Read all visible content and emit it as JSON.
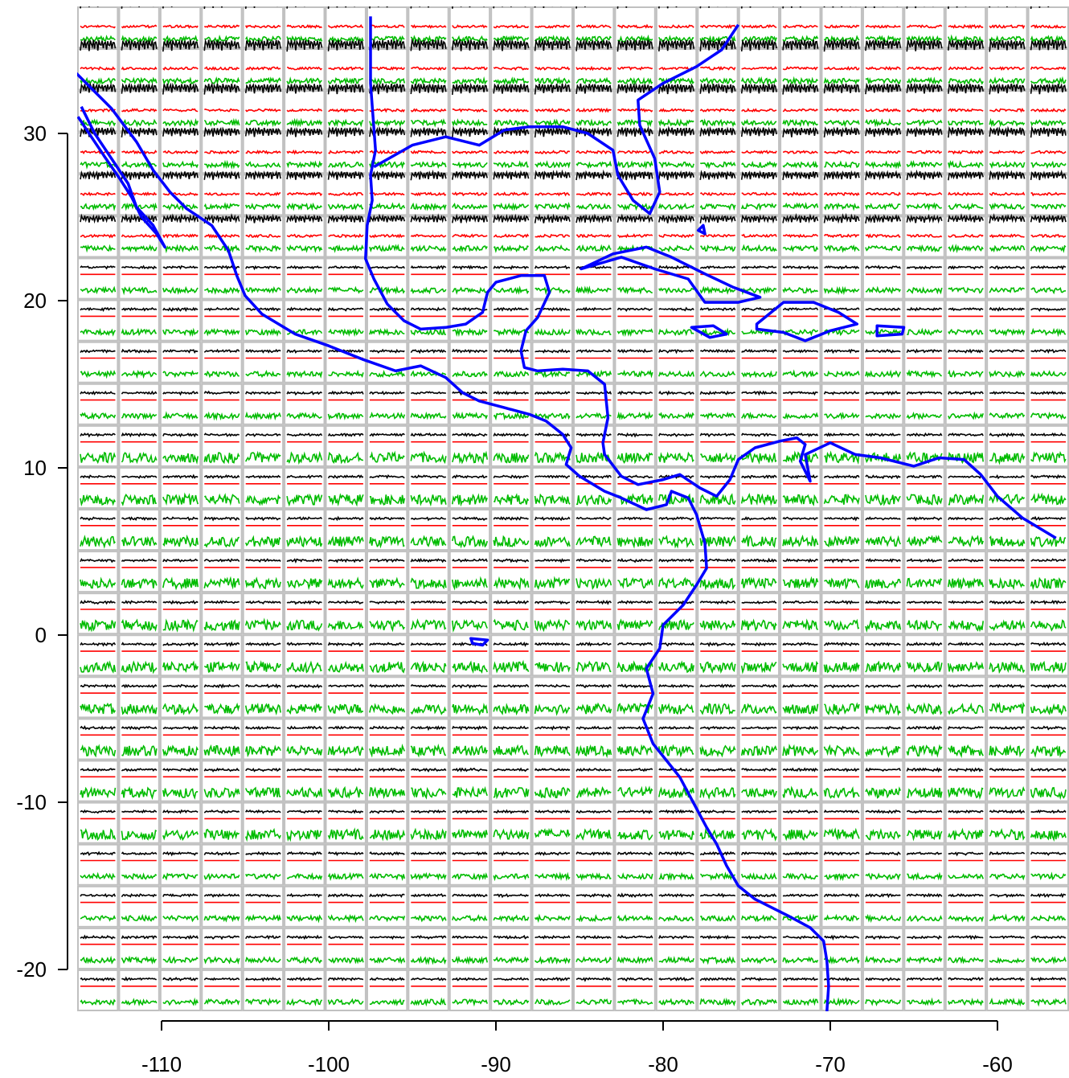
{
  "axes": {
    "x_ticks": [
      {
        "value": -110,
        "label": "-110"
      },
      {
        "value": -100,
        "label": "-100"
      },
      {
        "value": -90,
        "label": "-90"
      },
      {
        "value": -80,
        "label": "-80"
      },
      {
        "value": -70,
        "label": "-70"
      },
      {
        "value": -60,
        "label": "-60"
      }
    ],
    "y_ticks": [
      {
        "value": 30,
        "label": "30"
      },
      {
        "value": 20,
        "label": "20"
      },
      {
        "value": 10,
        "label": "10"
      },
      {
        "value": 0,
        "label": "0"
      },
      {
        "value": -10,
        "label": "-10"
      },
      {
        "value": -20,
        "label": "-20"
      }
    ],
    "xlim": [
      -115,
      -55
    ],
    "ylim": [
      -23,
      37
    ]
  },
  "grid": {
    "columns": 24,
    "rows": 24,
    "cell_size_deg": 2.5,
    "border_color": "#c0c0c0"
  },
  "series_colors": {
    "top_series": "#000000",
    "mid_series": "#ff0000",
    "bottom_series": "#00bb00",
    "coastline": "#0000ff"
  },
  "coastline": [
    [
      -116,
      34.5
    ],
    [
      -114.5,
      33
    ],
    [
      -113,
      31.5
    ],
    [
      -111.5,
      29.5
    ],
    [
      -110.5,
      27.8
    ],
    [
      -109.5,
      26.5
    ],
    [
      -108.5,
      25.5
    ],
    [
      -107,
      24.5
    ],
    [
      -106,
      23
    ],
    [
      -105.5,
      21.5
    ],
    [
      -105,
      20.3
    ],
    [
      -104,
      19.2
    ],
    [
      -102,
      18
    ],
    [
      -100,
      17.3
    ],
    [
      -98,
      16.5
    ],
    [
      -96,
      15.8
    ],
    [
      -94.5,
      16.1
    ],
    [
      -93,
      15.4
    ],
    [
      -92,
      14.5
    ],
    [
      -91,
      14
    ],
    [
      -89.5,
      13.6
    ],
    [
      -88,
      13.2
    ],
    [
      -87,
      12.8
    ],
    [
      -86,
      12
    ],
    [
      -85.5,
      11.2
    ],
    [
      -85.8,
      10.2
    ],
    [
      -85,
      9.5
    ],
    [
      -83.5,
      8.6
    ],
    [
      -82.5,
      8.2
    ],
    [
      -81,
      7.5
    ],
    [
      -79.8,
      7.8
    ],
    [
      -79.5,
      8.6
    ],
    [
      -78.5,
      8.2
    ],
    [
      -78,
      7.2
    ],
    [
      -77.5,
      5.5
    ],
    [
      -77.4,
      4
    ],
    [
      -78,
      3
    ],
    [
      -78.8,
      1.8
    ],
    [
      -80,
      0.6
    ],
    [
      -80.2,
      -0.8
    ],
    [
      -81,
      -2
    ],
    [
      -80.6,
      -3.5
    ],
    [
      -81.2,
      -5
    ],
    [
      -80.6,
      -6.5
    ],
    [
      -79.8,
      -7.5
    ],
    [
      -79,
      -8.5
    ],
    [
      -78.2,
      -10
    ],
    [
      -77.4,
      -11.5
    ],
    [
      -76.8,
      -12.5
    ],
    [
      -76.2,
      -13.8
    ],
    [
      -75.5,
      -15
    ],
    [
      -74.5,
      -15.8
    ],
    [
      -72.5,
      -16.8
    ],
    [
      -71.2,
      -17.5
    ],
    [
      -70.4,
      -18.3
    ],
    [
      -70.2,
      -19.5
    ],
    [
      -70.1,
      -21
    ],
    [
      -70.2,
      -22.5
    ]
  ],
  "coastline_mexico_east": [
    [
      -97.5,
      37
    ],
    [
      -97.5,
      33
    ],
    [
      -97.2,
      29
    ],
    [
      -97.5,
      27.5
    ],
    [
      -97.4,
      26
    ],
    [
      -97.7,
      24.5
    ],
    [
      -97.8,
      22.5
    ],
    [
      -97.3,
      21.3
    ],
    [
      -96.5,
      19.8
    ],
    [
      -95.5,
      18.8
    ],
    [
      -94.5,
      18.3
    ],
    [
      -93,
      18.4
    ],
    [
      -91.8,
      18.6
    ],
    [
      -90.8,
      19.3
    ],
    [
      -90.5,
      20.5
    ],
    [
      -90,
      21.1
    ],
    [
      -88.5,
      21.5
    ],
    [
      -87.1,
      21.5
    ],
    [
      -86.8,
      20.5
    ],
    [
      -87.5,
      19
    ],
    [
      -88.2,
      18.2
    ],
    [
      -88.5,
      17
    ],
    [
      -88.3,
      16
    ],
    [
      -87.5,
      15.8
    ],
    [
      -86,
      15.9
    ],
    [
      -84.5,
      15.8
    ],
    [
      -83.5,
      15
    ],
    [
      -83.3,
      13
    ],
    [
      -83.6,
      11.5
    ],
    [
      -83.5,
      10.8
    ],
    [
      -82.5,
      9.5
    ],
    [
      -81.5,
      9.0
    ],
    [
      -80,
      9.3
    ],
    [
      -79,
      9.6
    ],
    [
      -77.8,
      8.8
    ],
    [
      -76.8,
      8.3
    ],
    [
      -76,
      9.3
    ],
    [
      -75.5,
      10.5
    ],
    [
      -74.5,
      11.2
    ],
    [
      -73,
      11.6
    ],
    [
      -72,
      11.8
    ],
    [
      -71.5,
      11.4
    ],
    [
      -71.8,
      10.4
    ],
    [
      -71.2,
      9.2
    ],
    [
      -71.5,
      10.8
    ],
    [
      -70,
      11.5
    ],
    [
      -68.5,
      10.8
    ],
    [
      -67,
      10.6
    ],
    [
      -65,
      10.1
    ],
    [
      -63.5,
      10.6
    ],
    [
      -62,
      10.5
    ],
    [
      -61,
      9.6
    ],
    [
      -60,
      8.3
    ],
    [
      -58.5,
      7
    ],
    [
      -56.5,
      5.8
    ]
  ],
  "coastline_gulf_north": [
    [
      -97.3,
      28
    ],
    [
      -95,
      29.3
    ],
    [
      -93,
      29.8
    ],
    [
      -91,
      29.3
    ],
    [
      -89.5,
      30.2
    ],
    [
      -88,
      30.4
    ],
    [
      -86,
      30.4
    ],
    [
      -84.5,
      30
    ],
    [
      -83,
      29
    ],
    [
      -82.7,
      27.5
    ],
    [
      -81.8,
      26
    ],
    [
      -80.8,
      25.2
    ],
    [
      -80.2,
      26.5
    ],
    [
      -80.5,
      28.5
    ],
    [
      -81.4,
      30.5
    ],
    [
      -81.5,
      32
    ],
    [
      -80,
      33
    ],
    [
      -78,
      34
    ],
    [
      -76.5,
      35
    ],
    [
      -75.5,
      36.5
    ]
  ],
  "coastline_baja": [
    [
      -114.8,
      31.6
    ],
    [
      -114,
      30
    ],
    [
      -112.8,
      28.2
    ],
    [
      -112,
      27
    ],
    [
      -111.5,
      25.6
    ],
    [
      -110.5,
      24.5
    ],
    [
      -109.8,
      23.2
    ],
    [
      -110.3,
      24
    ],
    [
      -111.2,
      25
    ],
    [
      -111.8,
      26.2
    ],
    [
      -112.5,
      27.3
    ],
    [
      -113.4,
      28.6
    ],
    [
      -114.2,
      29.8
    ],
    [
      -115,
      31
    ]
  ],
  "islands": [
    [
      [
        -84.9,
        21.9
      ],
      [
        -83,
        22.8
      ],
      [
        -81,
        23.2
      ],
      [
        -79.5,
        22.6
      ],
      [
        -77.5,
        21.6
      ],
      [
        -75.8,
        20.8
      ],
      [
        -74.2,
        20.2
      ],
      [
        -75.5,
        19.9
      ],
      [
        -77.5,
        19.9
      ],
      [
        -78.5,
        21.3
      ],
      [
        -80.5,
        21.9
      ],
      [
        -82.5,
        22.6
      ],
      [
        -84.9,
        21.9
      ]
    ],
    [
      [
        -78.3,
        18.4
      ],
      [
        -77,
        18.5
      ],
      [
        -76.2,
        18
      ],
      [
        -77.2,
        17.8
      ],
      [
        -78.3,
        18.4
      ]
    ],
    [
      [
        -74.4,
        18.6
      ],
      [
        -72.8,
        19.9
      ],
      [
        -71,
        19.9
      ],
      [
        -69.5,
        19.3
      ],
      [
        -68.4,
        18.6
      ],
      [
        -70,
        18.2
      ],
      [
        -71.5,
        17.6
      ],
      [
        -72.8,
        18.1
      ],
      [
        -74.4,
        18.3
      ],
      [
        -74.4,
        18.6
      ]
    ],
    [
      [
        -67.2,
        18.5
      ],
      [
        -65.6,
        18.4
      ],
      [
        -65.7,
        18
      ],
      [
        -67.2,
        17.9
      ],
      [
        -67.2,
        18.5
      ]
    ],
    [
      [
        -91.5,
        -0.2
      ],
      [
        -90.5,
        -0.3
      ],
      [
        -90.8,
        -0.6
      ],
      [
        -91.4,
        -0.5
      ],
      [
        -91.5,
        -0.2
      ]
    ],
    [
      [
        -77.9,
        24.2
      ],
      [
        -77.6,
        24.5
      ],
      [
        -77.5,
        24.0
      ],
      [
        -77.9,
        24.2
      ]
    ]
  ]
}
